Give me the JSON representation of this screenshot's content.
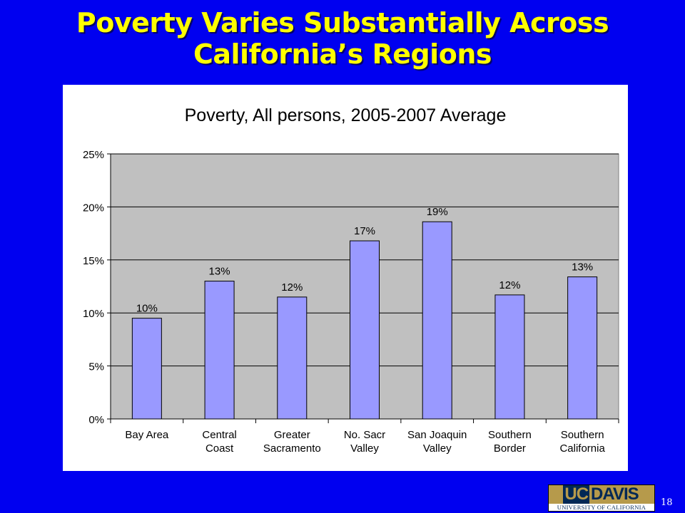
{
  "slide": {
    "title_line1": "Poverty Varies Substantially Across",
    "title_line2": "California’s Regions",
    "number": "18"
  },
  "logo": {
    "uc": "UC",
    "davis": "DAVIS",
    "subtitle": "UNIVERSITY OF CALIFORNIA"
  },
  "colors": {
    "background": "#0000f0",
    "title": "#ffff00",
    "plot_area": "#c0c0c0",
    "bar_fill": "#9999ff"
  },
  "chart_data": {
    "type": "bar",
    "title": "Poverty, All persons, 2005-2007 Average",
    "categories": [
      [
        "Bay Area"
      ],
      [
        "Central",
        "Coast"
      ],
      [
        "Greater",
        "Sacramento"
      ],
      [
        "No. Sacr",
        "Valley"
      ],
      [
        "San Joaquin",
        "Valley"
      ],
      [
        "Southern",
        "Border"
      ],
      [
        "Southern",
        "California"
      ]
    ],
    "values": [
      0.095,
      0.13,
      0.115,
      0.168,
      0.186,
      0.117,
      0.134
    ],
    "data_labels": [
      "10%",
      "13%",
      "12%",
      "17%",
      "19%",
      "12%",
      "13%"
    ],
    "ylim": [
      0,
      0.25
    ],
    "yticks": [
      "0%",
      "5%",
      "10%",
      "15%",
      "20%",
      "25%"
    ],
    "xlabel": "",
    "ylabel": "",
    "grid": true,
    "legend": "none"
  }
}
